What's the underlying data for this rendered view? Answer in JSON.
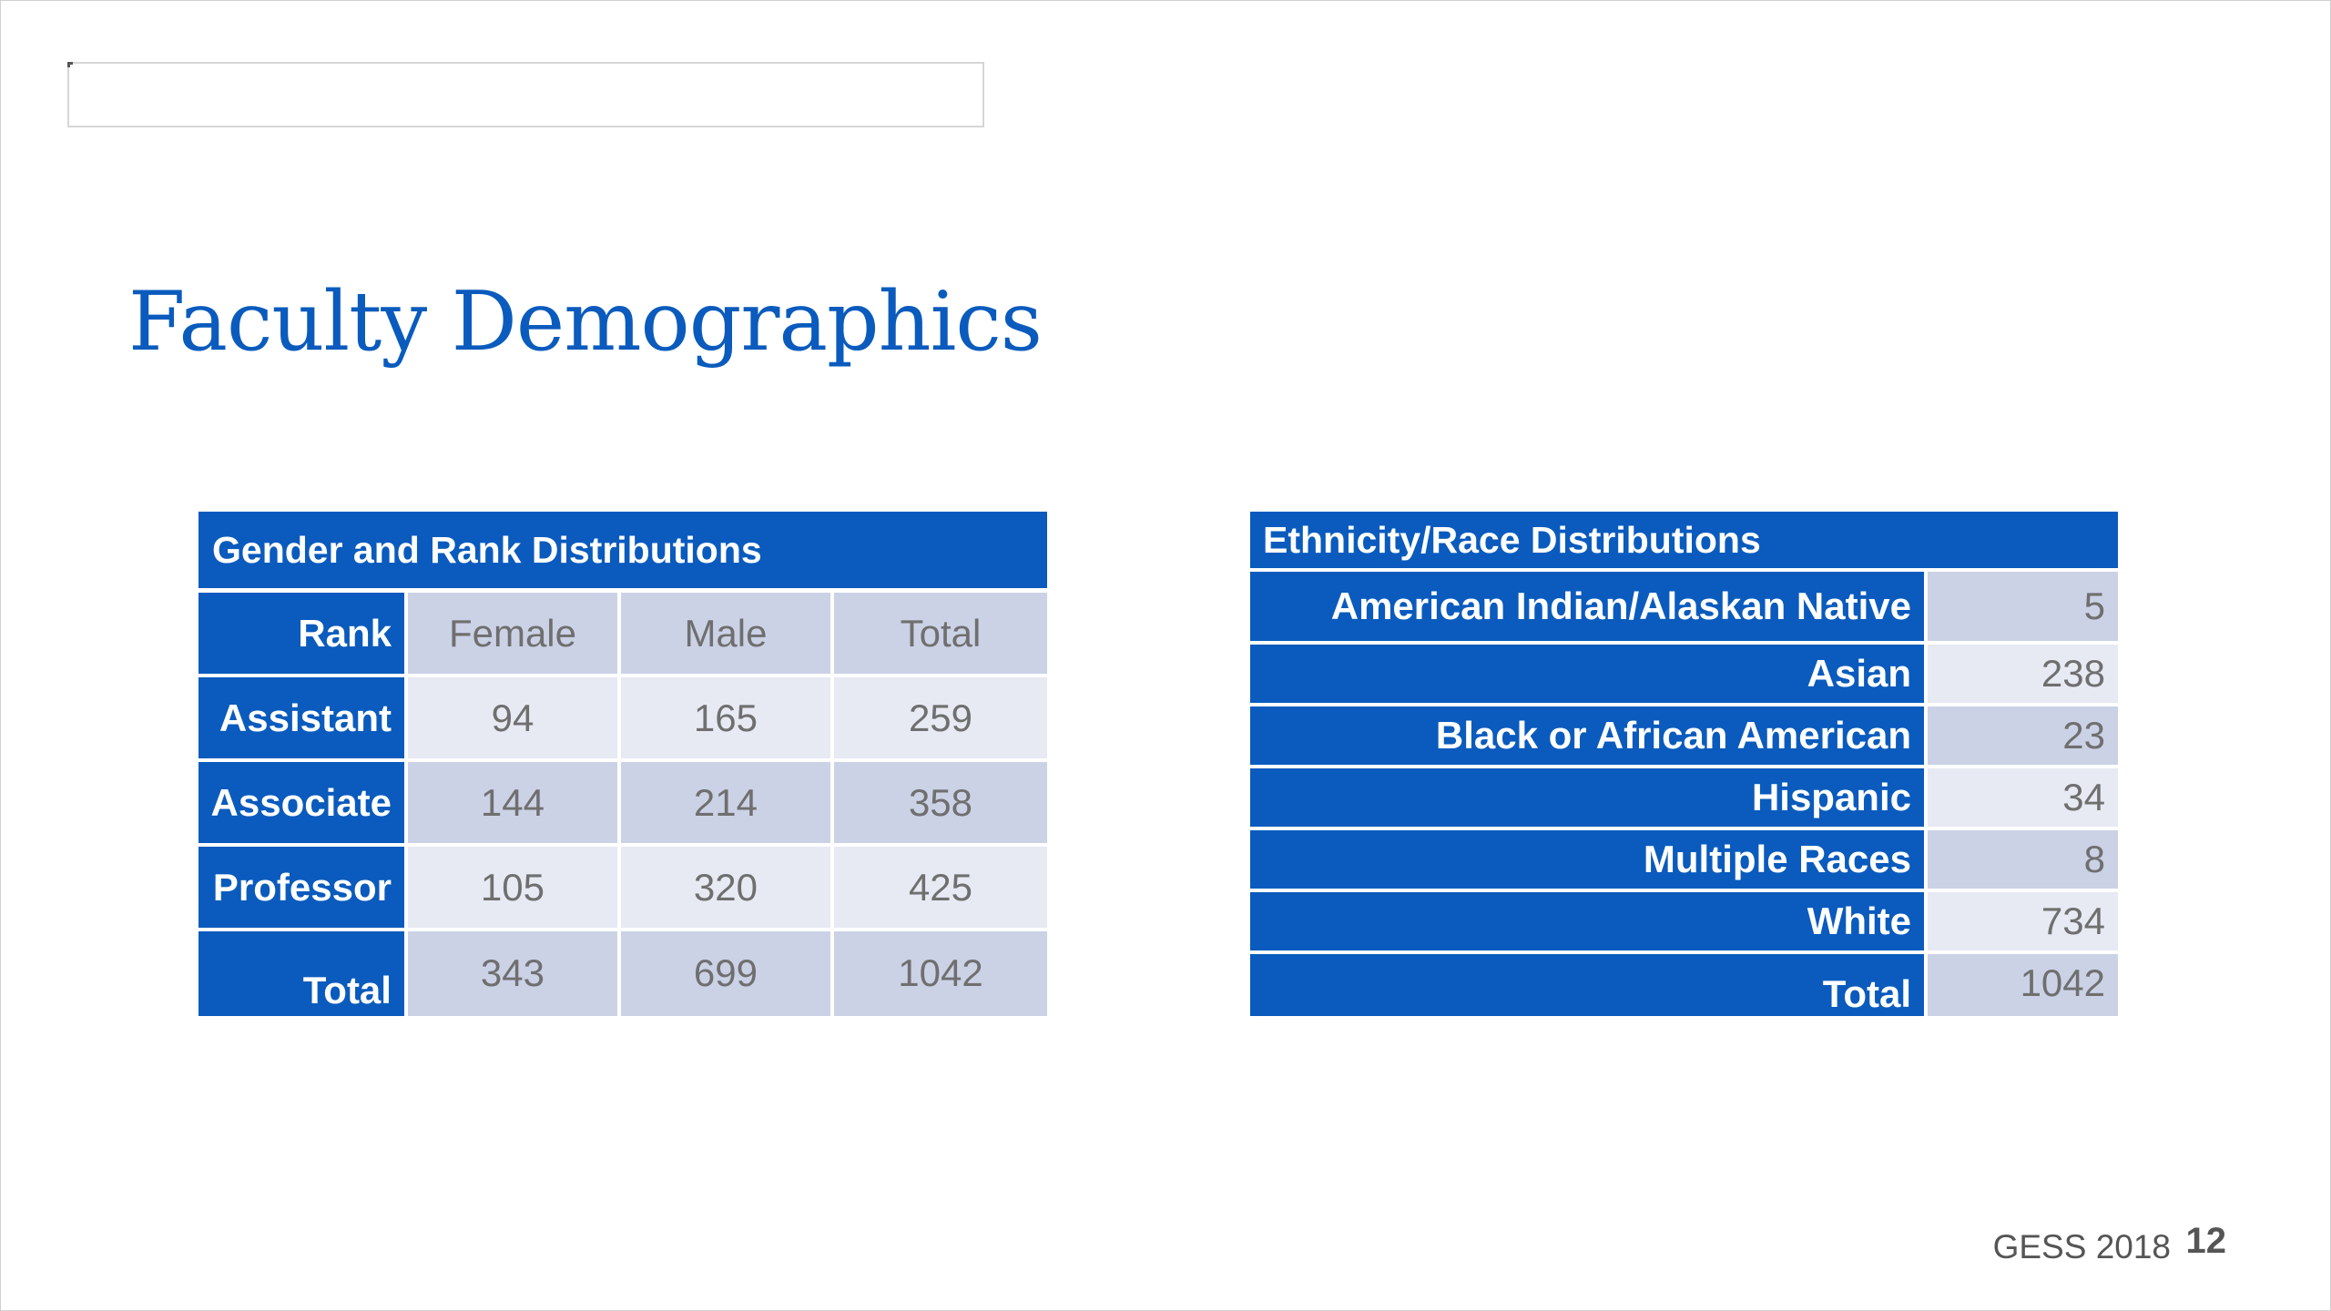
{
  "slide": {
    "title": "Faculty Demographics",
    "footer": "GESS 2018",
    "page_number": "12"
  },
  "gender_rank": {
    "caption": "Gender and Rank Distributions",
    "header": [
      "Rank",
      "Female",
      "Male",
      "Total"
    ],
    "rows": [
      {
        "rank": "Assistant",
        "female": "94",
        "male": "165",
        "total": "259"
      },
      {
        "rank": "Associate",
        "female": "144",
        "male": "214",
        "total": "358"
      },
      {
        "rank": "Professor",
        "female": "105",
        "male": "320",
        "total": "425"
      },
      {
        "rank": "Total",
        "female": "343",
        "male": "699",
        "total": "1042"
      }
    ]
  },
  "ethnicity": {
    "caption": "Ethnicity/Race Distributions",
    "rows": [
      {
        "label": "American Indian/Alaskan Native",
        "value": "5"
      },
      {
        "label": "Asian",
        "value": "238"
      },
      {
        "label": "Black or African American",
        "value": "23"
      },
      {
        "label": "Hispanic",
        "value": "34"
      },
      {
        "label": "Multiple Races",
        "value": "8"
      },
      {
        "label": "White",
        "value": "734"
      },
      {
        "label": "Total",
        "value": "1042"
      }
    ]
  },
  "colors": {
    "accent": "#0a5bbd",
    "cell_dark": "#cbd2e6",
    "cell_light": "#e7e9f3",
    "text_gray": "#6f6f6f"
  }
}
